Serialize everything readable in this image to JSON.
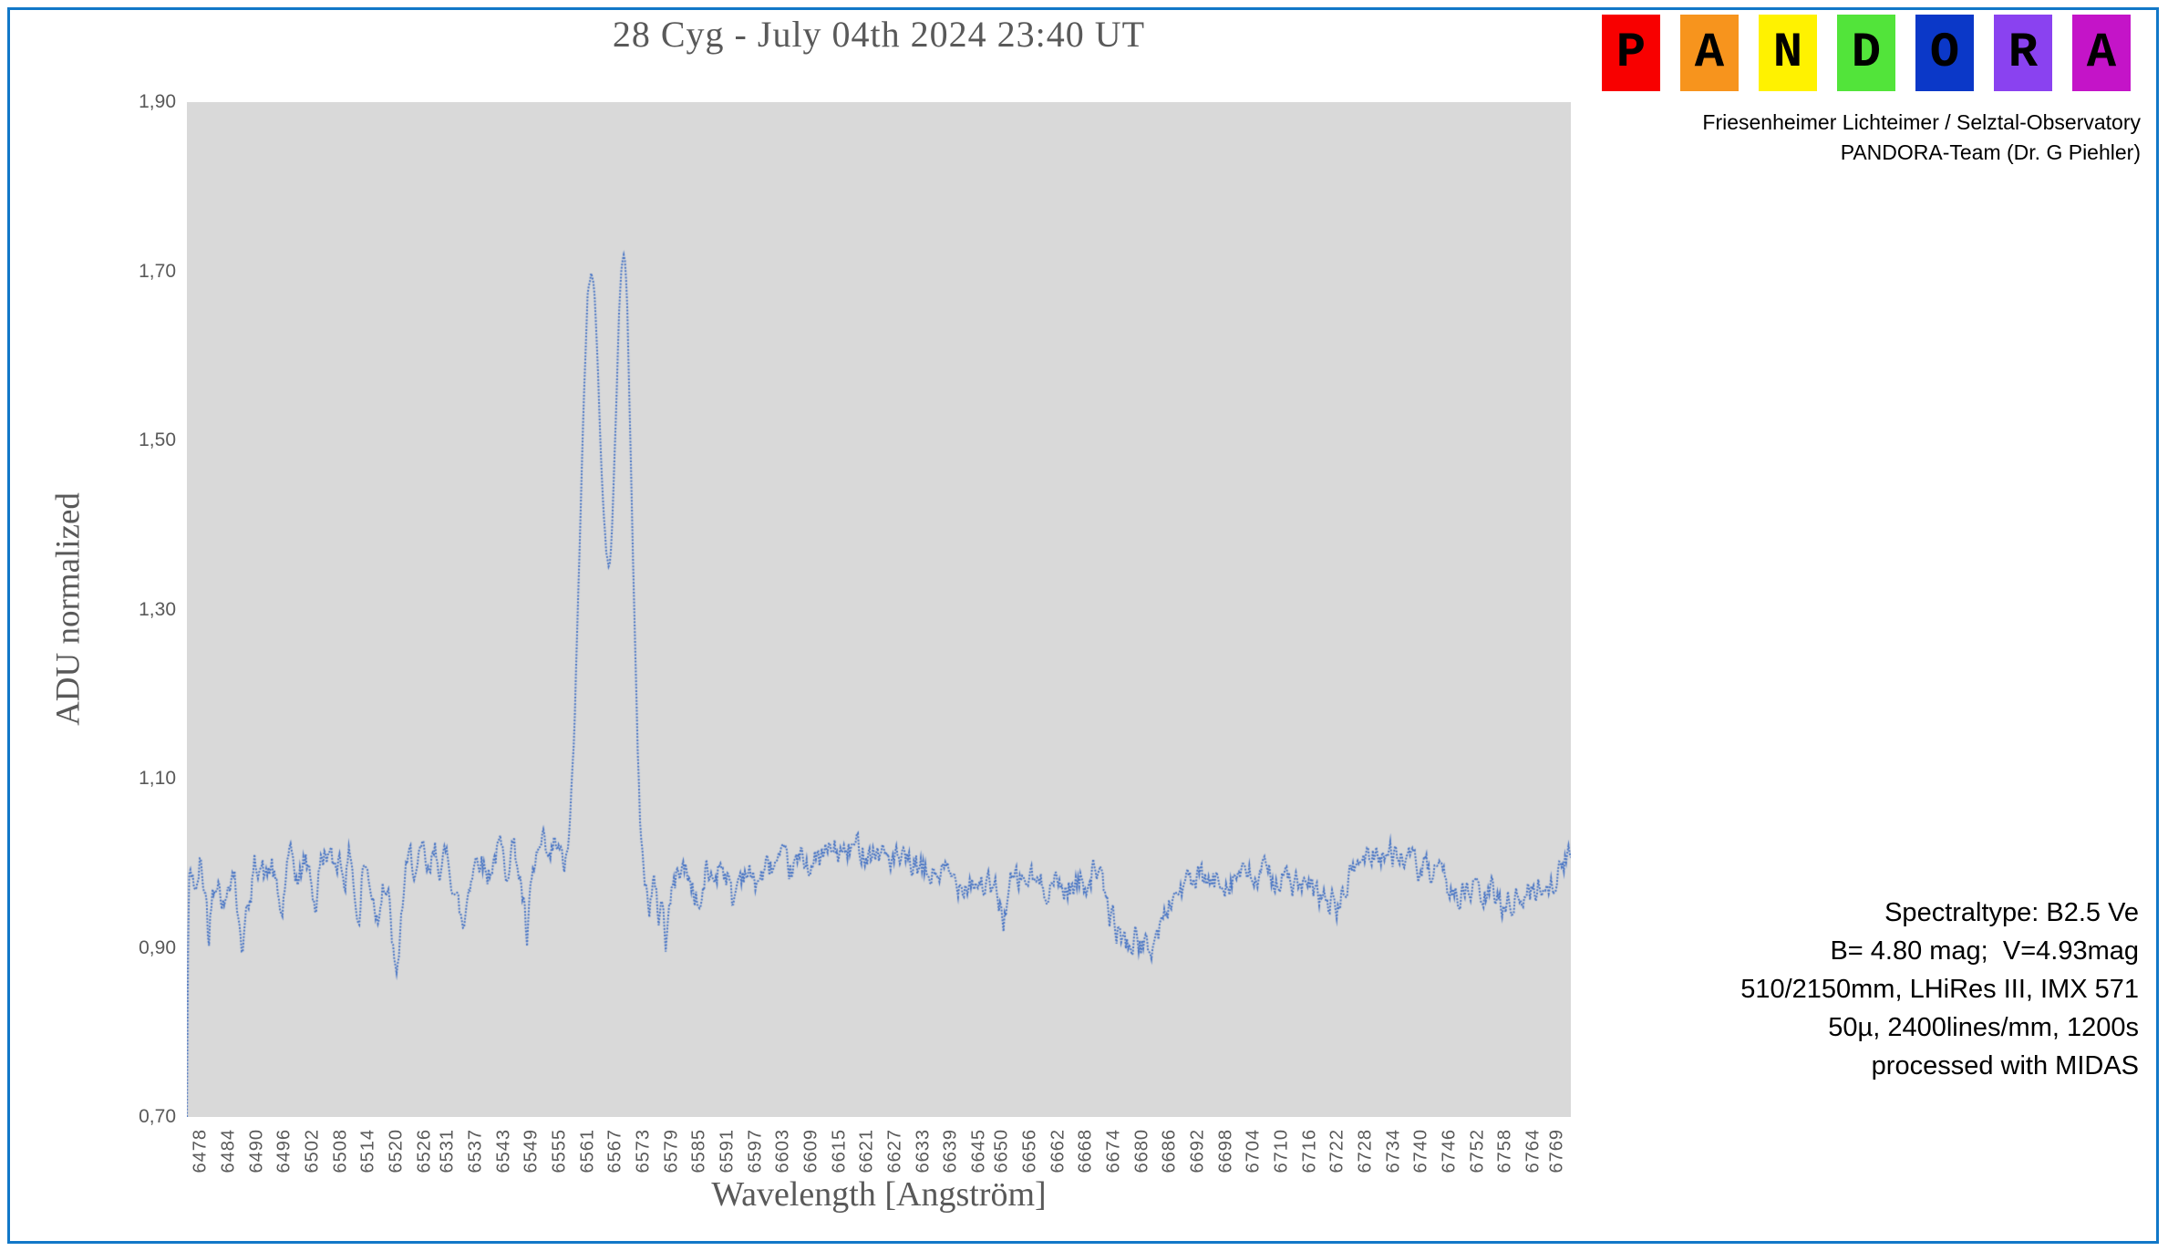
{
  "page": {
    "background": "#ffffff",
    "border_color": "#1278C8"
  },
  "header": {
    "title": "28 Cyg - July 04th 2024 23:40 UT"
  },
  "logo": {
    "letters": [
      {
        "char": "P",
        "color": "#F80000"
      },
      {
        "char": "A",
        "color": "#F7941D"
      },
      {
        "char": "N",
        "color": "#FFF200"
      },
      {
        "char": "D",
        "color": "#52E43A"
      },
      {
        "char": "O",
        "color": "#0B38C8"
      },
      {
        "char": "R",
        "color": "#8A42F0"
      },
      {
        "char": "A",
        "color": "#C414C8"
      }
    ]
  },
  "credits": {
    "line1": "Friesenheimer Lichteimer / Selztal-Observatory",
    "line2": "PANDORA-Team (Dr. G Piehler)"
  },
  "info_block": {
    "lines": [
      "Spectraltype: B2.5 Ve",
      "B= 4.80 mag;  V=4.93mag",
      "510/2150mm, LHiRes III, IMX 571",
      "50µ, 2400lines/mm, 1200s",
      "processed with MIDAS"
    ]
  },
  "chart_data": {
    "type": "line",
    "title": "28 Cyg - July 04th 2024 23:40 UT",
    "xlabel": "Wavelength [Angström]",
    "ylabel": "ADU normalized",
    "x_range": [
      6475,
      6772
    ],
    "ylim": [
      0.7,
      1.9
    ],
    "plot_bg": "#D9D9D9",
    "line_color": "#4472C4",
    "grid": false,
    "legend": null,
    "line_style": "dotted",
    "y_ticks": [
      {
        "value": 1.9,
        "label": "1,90"
      },
      {
        "value": 1.7,
        "label": "1,70"
      },
      {
        "value": 1.5,
        "label": "1,50"
      },
      {
        "value": 1.3,
        "label": "1,30"
      },
      {
        "value": 1.1,
        "label": "1,10"
      },
      {
        "value": 0.9,
        "label": "0,90"
      },
      {
        "value": 0.7,
        "label": "0,70"
      }
    ],
    "x_ticks": [
      "6478",
      "6484",
      "6490",
      "6496",
      "6502",
      "6508",
      "6514",
      "6520",
      "6526",
      "6531",
      "6537",
      "6543",
      "6549",
      "6555",
      "6561",
      "6567",
      "6573",
      "6579",
      "6585",
      "6591",
      "6597",
      "6603",
      "6609",
      "6615",
      "6621",
      "6627",
      "6633",
      "6639",
      "6645",
      "6650",
      "6656",
      "6662",
      "6668",
      "6674",
      "6680",
      "6686",
      "6692",
      "6698",
      "6704",
      "6710",
      "6716",
      "6722",
      "6728",
      "6734",
      "6740",
      "6746",
      "6752",
      "6758",
      "6764",
      "6769"
    ],
    "noise": {
      "amplitude": 0.014,
      "peak_amplitude": 0.005,
      "seed": 42,
      "step": 0.25
    },
    "series": [
      {
        "name": "ADU normalized",
        "anchors": [
          [
            6475.0,
            0.7
          ],
          [
            6475.35,
            0.975
          ],
          [
            6476.2,
            0.99
          ],
          [
            6477.0,
            0.96
          ],
          [
            6477.8,
            1.0
          ],
          [
            6478.6,
            0.975
          ],
          [
            6479.2,
            0.955
          ],
          [
            6479.7,
            0.905
          ],
          [
            6480.4,
            0.97
          ],
          [
            6481.4,
            0.99
          ],
          [
            6482.4,
            0.965
          ],
          [
            6483.2,
            0.945
          ],
          [
            6484.0,
            0.985
          ],
          [
            6485.2,
            0.995
          ],
          [
            6486.2,
            0.92
          ],
          [
            6486.9,
            0.895
          ],
          [
            6487.6,
            0.96
          ],
          [
            6488.4,
            0.935
          ],
          [
            6489.4,
            0.995
          ],
          [
            6490.6,
            1.005
          ],
          [
            6492.0,
            0.98
          ],
          [
            6493.2,
            1.0
          ],
          [
            6494.4,
            0.96
          ],
          [
            6495.4,
            0.935
          ],
          [
            6496.4,
            0.995
          ],
          [
            6497.6,
            1.005
          ],
          [
            6499.0,
            0.975
          ],
          [
            6500.2,
            1.005
          ],
          [
            6501.6,
            0.985
          ],
          [
            6502.6,
            0.945
          ],
          [
            6503.6,
            1.0
          ],
          [
            6505.0,
            1.015
          ],
          [
            6506.4,
            0.995
          ],
          [
            6507.6,
            1.01
          ],
          [
            6509.0,
            0.985
          ],
          [
            6510.2,
            1.015
          ],
          [
            6511.2,
            0.955
          ],
          [
            6511.9,
            0.92
          ],
          [
            6512.8,
            1.0
          ],
          [
            6514.0,
            0.985
          ],
          [
            6515.0,
            0.96
          ],
          [
            6516.0,
            0.935
          ],
          [
            6517.0,
            0.985
          ],
          [
            6518.2,
            0.96
          ],
          [
            6519.2,
            0.9
          ],
          [
            6520.0,
            0.852
          ],
          [
            6520.8,
            0.92
          ],
          [
            6521.8,
            0.985
          ],
          [
            6523.0,
            1.005
          ],
          [
            6524.4,
            0.99
          ],
          [
            6525.6,
            1.01
          ],
          [
            6527.0,
            0.98
          ],
          [
            6528.2,
            1.015
          ],
          [
            6529.6,
            0.995
          ],
          [
            6531.0,
            1.01
          ],
          [
            6532.2,
            0.975
          ],
          [
            6533.4,
            0.945
          ],
          [
            6534.4,
            0.92
          ],
          [
            6535.4,
            0.975
          ],
          [
            6536.6,
            1.0
          ],
          [
            6538.0,
            1.012
          ],
          [
            6539.4,
            0.985
          ],
          [
            6540.8,
            1.005
          ],
          [
            6542.2,
            1.02
          ],
          [
            6543.4,
            0.99
          ],
          [
            6544.8,
            1.025
          ],
          [
            6546.0,
            1.0
          ],
          [
            6547.2,
            0.955
          ],
          [
            6548.0,
            0.9
          ],
          [
            6548.8,
            0.965
          ],
          [
            6550.0,
            1.005
          ],
          [
            6551.4,
            1.02
          ],
          [
            6552.8,
            0.995
          ],
          [
            6554.0,
            1.025
          ],
          [
            6555.2,
            1.005
          ],
          [
            6556.2,
            0.995
          ],
          [
            6557.2,
            1.04
          ],
          [
            6558.2,
            1.16
          ],
          [
            6559.2,
            1.36
          ],
          [
            6560.2,
            1.55
          ],
          [
            6561.0,
            1.67
          ],
          [
            6561.8,
            1.705
          ],
          [
            6562.4,
            1.69
          ],
          [
            6563.2,
            1.58
          ],
          [
            6564.2,
            1.44
          ],
          [
            6565.0,
            1.365
          ],
          [
            6565.6,
            1.34
          ],
          [
            6566.2,
            1.39
          ],
          [
            6567.0,
            1.52
          ],
          [
            6567.8,
            1.66
          ],
          [
            6568.4,
            1.715
          ],
          [
            6568.9,
            1.72
          ],
          [
            6569.5,
            1.66
          ],
          [
            6570.2,
            1.5
          ],
          [
            6571.0,
            1.3
          ],
          [
            6571.8,
            1.12
          ],
          [
            6572.6,
            1.015
          ],
          [
            6573.4,
            0.975
          ],
          [
            6574.2,
            0.952
          ],
          [
            6575.2,
            0.975
          ],
          [
            6576.2,
            0.935
          ],
          [
            6577.0,
            0.96
          ],
          [
            6577.8,
            0.905
          ],
          [
            6578.6,
            0.955
          ],
          [
            6579.6,
            0.975
          ],
          [
            6581.0,
            1.0
          ],
          [
            6582.6,
            0.985
          ],
          [
            6584.0,
            0.965
          ],
          [
            6585.2,
            0.945
          ],
          [
            6586.4,
            0.99
          ],
          [
            6588.0,
            0.98
          ],
          [
            6589.6,
            1.005
          ],
          [
            6591.0,
            0.985
          ],
          [
            6592.2,
            0.95
          ],
          [
            6593.4,
            0.985
          ],
          [
            6595.0,
            0.995
          ],
          [
            6596.6,
            0.975
          ],
          [
            6598.2,
            0.985
          ],
          [
            6600.0,
            0.995
          ],
          [
            6602.0,
            1.0
          ],
          [
            6604.5,
            0.99
          ],
          [
            6607.0,
            1.005
          ],
          [
            6610.0,
            1.0
          ],
          [
            6613.0,
            1.015
          ],
          [
            6616.0,
            1.01
          ],
          [
            6619.0,
            1.02
          ],
          [
            6622.0,
            1.015
          ],
          [
            6625.0,
            1.01
          ],
          [
            6628.0,
            1.0
          ],
          [
            6631.0,
            0.995
          ],
          [
            6634.0,
            0.985
          ],
          [
            6637.0,
            0.99
          ],
          [
            6640.0,
            0.978
          ],
          [
            6643.0,
            0.982
          ],
          [
            6646.0,
            0.975
          ],
          [
            6648.5,
            0.965
          ],
          [
            6650.3,
            0.935
          ],
          [
            6651.6,
            0.975
          ],
          [
            6653.5,
            0.978
          ],
          [
            6656.0,
            0.982
          ],
          [
            6658.5,
            0.972
          ],
          [
            6661.0,
            0.978
          ],
          [
            6663.5,
            0.97
          ],
          [
            6666.0,
            0.975
          ],
          [
            6668.5,
            0.982
          ],
          [
            6670.0,
            1.002
          ],
          [
            6671.5,
            0.968
          ],
          [
            6673.0,
            0.94
          ],
          [
            6675.0,
            0.918
          ],
          [
            6677.0,
            0.903
          ],
          [
            6679.0,
            0.912
          ],
          [
            6681.0,
            0.895
          ],
          [
            6682.6,
            0.908
          ],
          [
            6684.2,
            0.928
          ],
          [
            6685.8,
            0.952
          ],
          [
            6687.5,
            0.968
          ],
          [
            6689.5,
            0.975
          ],
          [
            6692.0,
            0.98
          ],
          [
            6695.0,
            0.975
          ],
          [
            6698.0,
            0.982
          ],
          [
            6701.0,
            0.987
          ],
          [
            6704.0,
            0.98
          ],
          [
            6707.0,
            0.988
          ],
          [
            6710.0,
            0.982
          ],
          [
            6713.0,
            0.975
          ],
          [
            6716.0,
            0.965
          ],
          [
            6719.0,
            0.958
          ],
          [
            6722.0,
            0.948
          ],
          [
            6724.0,
            0.975
          ],
          [
            6726.0,
            1.0
          ],
          [
            6728.0,
            1.008
          ],
          [
            6731.0,
            1.016
          ],
          [
            6733.0,
            1.006
          ],
          [
            6735.0,
            1.014
          ],
          [
            6737.0,
            1.002
          ],
          [
            6739.0,
            0.994
          ],
          [
            6741.0,
            0.988
          ],
          [
            6743.0,
            0.982
          ],
          [
            6745.0,
            0.976
          ],
          [
            6747.0,
            0.968
          ],
          [
            6749.0,
            0.962
          ],
          [
            6751.0,
            0.97
          ],
          [
            6753.0,
            0.958
          ],
          [
            6755.0,
            0.965
          ],
          [
            6757.0,
            0.952
          ],
          [
            6759.0,
            0.96
          ],
          [
            6761.0,
            0.957
          ],
          [
            6763.0,
            0.964
          ],
          [
            6765.0,
            0.971
          ],
          [
            6767.0,
            0.977
          ],
          [
            6769.0,
            0.985
          ],
          [
            6770.5,
            0.995
          ],
          [
            6771.4,
            1.012
          ],
          [
            6772.0,
            1.0
          ]
        ]
      }
    ]
  }
}
